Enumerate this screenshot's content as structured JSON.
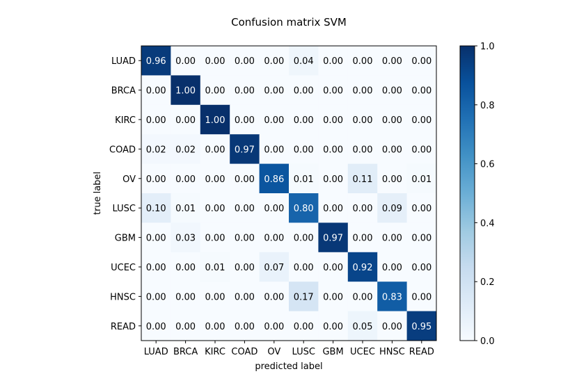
{
  "chart_data": {
    "type": "heatmap",
    "title": "Confusion matrix SVM",
    "xlabel": "predicted label",
    "ylabel": "true label",
    "x_categories": [
      "LUAD",
      "BRCA",
      "KIRC",
      "COAD",
      "OV",
      "LUSC",
      "GBM",
      "UCEC",
      "HNSC",
      "READ"
    ],
    "y_categories": [
      "LUAD",
      "BRCA",
      "KIRC",
      "COAD",
      "OV",
      "LUSC",
      "GBM",
      "UCEC",
      "HNSC",
      "READ"
    ],
    "values": [
      [
        0.96,
        0.0,
        0.0,
        0.0,
        0.0,
        0.04,
        0.0,
        0.0,
        0.0,
        0.0
      ],
      [
        0.0,
        1.0,
        0.0,
        0.0,
        0.0,
        0.0,
        0.0,
        0.0,
        0.0,
        0.0
      ],
      [
        0.0,
        0.0,
        1.0,
        0.0,
        0.0,
        0.0,
        0.0,
        0.0,
        0.0,
        0.0
      ],
      [
        0.02,
        0.02,
        0.0,
        0.97,
        0.0,
        0.0,
        0.0,
        0.0,
        0.0,
        0.0
      ],
      [
        0.0,
        0.0,
        0.0,
        0.0,
        0.86,
        0.01,
        0.0,
        0.11,
        0.0,
        0.01
      ],
      [
        0.1,
        0.01,
        0.0,
        0.0,
        0.0,
        0.8,
        0.0,
        0.0,
        0.09,
        0.0
      ],
      [
        0.0,
        0.03,
        0.0,
        0.0,
        0.0,
        0.0,
        0.97,
        0.0,
        0.0,
        0.0
      ],
      [
        0.0,
        0.0,
        0.01,
        0.0,
        0.07,
        0.0,
        0.0,
        0.92,
        0.0,
        0.0
      ],
      [
        0.0,
        0.0,
        0.0,
        0.0,
        0.0,
        0.17,
        0.0,
        0.0,
        0.83,
        0.0
      ],
      [
        0.0,
        0.0,
        0.0,
        0.0,
        0.0,
        0.0,
        0.0,
        0.05,
        0.0,
        0.95
      ]
    ],
    "colormap": "Blues",
    "colorbar": {
      "range": [
        0.0,
        1.0
      ],
      "ticks": [
        0.0,
        0.2,
        0.4,
        0.6,
        0.8,
        1.0
      ],
      "tick_labels": [
        "0.0",
        "0.2",
        "0.4",
        "0.6",
        "0.8",
        "1.0"
      ]
    },
    "value_format": "2 decimals",
    "text_color_dark_cell": "#ffffff",
    "text_color_light_cell": "#000000"
  }
}
